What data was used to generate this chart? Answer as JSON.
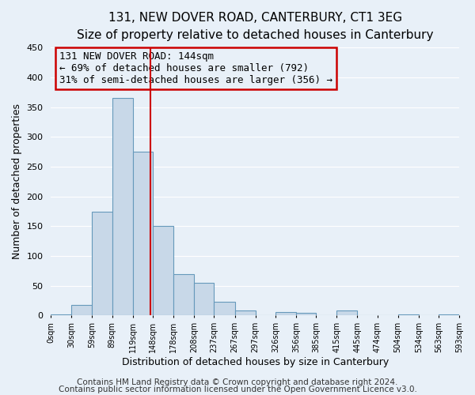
{
  "title": "131, NEW DOVER ROAD, CANTERBURY, CT1 3EG",
  "subtitle": "Size of property relative to detached houses in Canterbury",
  "xlabel": "Distribution of detached houses by size in Canterbury",
  "ylabel": "Number of detached properties",
  "footnote1": "Contains HM Land Registry data © Crown copyright and database right 2024.",
  "footnote2": "Contains public sector information licensed under the Open Government Licence v3.0.",
  "bar_edges": [
    0,
    30,
    59,
    89,
    119,
    148,
    178,
    208,
    237,
    267,
    297,
    326,
    356,
    385,
    415,
    445,
    474,
    504,
    534,
    563,
    593
  ],
  "bar_heights": [
    2,
    18,
    175,
    365,
    275,
    150,
    70,
    55,
    23,
    9,
    0,
    6,
    5,
    0,
    8,
    0,
    0,
    2,
    0,
    2
  ],
  "tick_labels": [
    "0sqm",
    "30sqm",
    "59sqm",
    "89sqm",
    "119sqm",
    "148sqm",
    "178sqm",
    "208sqm",
    "237sqm",
    "267sqm",
    "297sqm",
    "326sqm",
    "356sqm",
    "385sqm",
    "415sqm",
    "445sqm",
    "474sqm",
    "504sqm",
    "534sqm",
    "563sqm",
    "593sqm"
  ],
  "bar_color": "#c8d8e8",
  "bar_edge_color": "#6699bb",
  "vline_x": 144,
  "vline_color": "#cc0000",
  "ylim": [
    0,
    450
  ],
  "annotation_line1": "131 NEW DOVER ROAD: 144sqm",
  "annotation_line2": "← 69% of detached houses are smaller (792)",
  "annotation_line3": "31% of semi-detached houses are larger (356) →",
  "bg_color": "#e8f0f8",
  "grid_color": "#ffffff",
  "title_fontsize": 11,
  "subtitle_fontsize": 10,
  "xlabel_fontsize": 9,
  "ylabel_fontsize": 9,
  "annot_fontsize": 9,
  "footnote_fontsize": 7.5,
  "yticks": [
    0,
    50,
    100,
    150,
    200,
    250,
    300,
    350,
    400,
    450
  ]
}
